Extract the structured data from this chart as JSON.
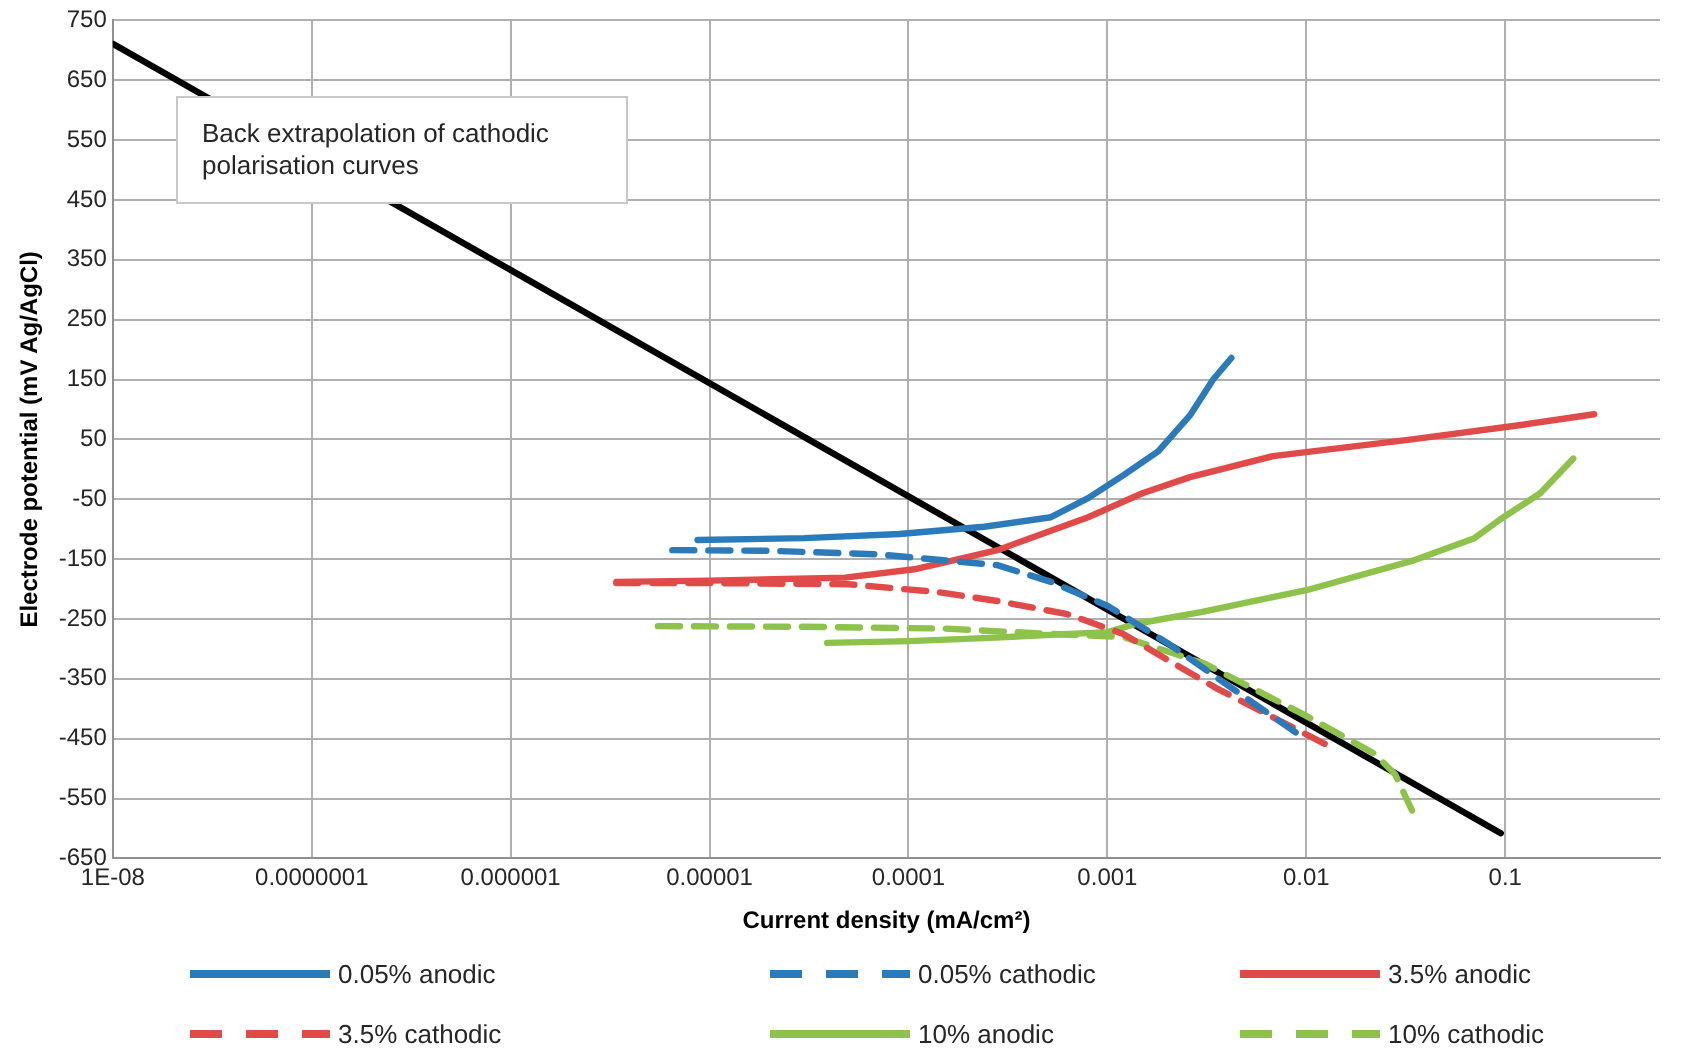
{
  "chart_data": {
    "type": "line",
    "xlabel": "Current density (mA/cm²)",
    "ylabel": "Electrode potential (mV Ag/AgCl)",
    "log": "x",
    "xlim": [
      1e-08,
      0.6
    ],
    "ylim": [
      -650,
      750
    ],
    "xticks": [
      {
        "value": 1e-08,
        "label": "1E-08"
      },
      {
        "value": 1e-07,
        "label": "0.0000001"
      },
      {
        "value": 1e-06,
        "label": "0.000001"
      },
      {
        "value": 1e-05,
        "label": "0.00001"
      },
      {
        "value": 0.0001,
        "label": "0.0001"
      },
      {
        "value": 0.001,
        "label": "0.001"
      },
      {
        "value": 0.01,
        "label": "0.01"
      },
      {
        "value": 0.1,
        "label": "0.1"
      }
    ],
    "yticks": [
      -650,
      -550,
      -450,
      -350,
      -250,
      -150,
      -50,
      50,
      150,
      250,
      350,
      450,
      550,
      650,
      750
    ],
    "grid": true,
    "legend": "bottom",
    "marker": "none",
    "annotations": [
      "Back extrapolation of cathodic polarisation curves"
    ],
    "series": [
      {
        "name": "0.05% anodic",
        "color": "#2b7bba",
        "line_style": "solid",
        "x": [
          8.7e-06,
          3e-05,
          9e-05,
          0.00024,
          0.00052,
          0.0008,
          0.0012,
          0.0018,
          0.0026,
          0.0034,
          0.0042
        ],
        "values": [
          -118,
          -115,
          -108,
          -96,
          -80,
          -48,
          -10,
          30,
          90,
          150,
          186
        ]
      },
      {
        "name": "0.05% cathodic",
        "color": "#2b7bba",
        "line_style": "dashed",
        "x": [
          6.5e-06,
          2e-05,
          7e-05,
          0.00028,
          0.00052,
          0.001,
          0.002,
          0.004,
          0.01
        ],
        "values": [
          -135,
          -136,
          -142,
          -160,
          -188,
          -228,
          -290,
          -360,
          -452
        ]
      },
      {
        "name": "3.5% anodic",
        "color": "#e04b4a",
        "line_style": "solid",
        "x": [
          3.4e-06,
          1e-05,
          4.8e-05,
          0.000107,
          0.00028,
          0.0008,
          0.0015,
          0.0026,
          0.0068,
          0.034,
          0.12,
          0.28
        ],
        "values": [
          -188,
          -186,
          -181,
          -167,
          -135,
          -80,
          -40,
          -13,
          22,
          50,
          74,
          92
        ]
      },
      {
        "name": "3.5% cathodic",
        "color": "#e04b4a",
        "line_style": "dashed",
        "x": [
          3.4e-06,
          1e-05,
          5e-05,
          0.00014,
          0.00028,
          0.00063,
          0.0012,
          0.002,
          0.0035,
          0.006,
          0.0135
        ],
        "values": [
          -190,
          -190,
          -192,
          -205,
          -220,
          -242,
          -275,
          -318,
          -365,
          -405,
          -465
        ]
      },
      {
        "name": "10% anodic",
        "color": "#8dc34a",
        "line_style": "solid",
        "x": [
          3.9e-05,
          0.0001,
          0.00024,
          0.001,
          0.0014,
          0.003,
          0.01,
          0.034,
          0.07,
          0.095,
          0.15,
          0.22
        ],
        "values": [
          -290,
          -287,
          -282,
          -272,
          -258,
          -238,
          -202,
          -153,
          -115,
          -83,
          -40,
          18
        ]
      },
      {
        "name": "10% cathodic",
        "color": "#8dc34a",
        "line_style": "dashed",
        "x": [
          5.5e-06,
          3e-05,
          0.00015,
          0.00052,
          0.0012,
          0.0031,
          0.01,
          0.022,
          0.028,
          0.034
        ],
        "values": [
          -262,
          -263,
          -266,
          -275,
          -280,
          -325,
          -412,
          -475,
          -510,
          -570
        ]
      },
      {
        "color": "#000000",
        "line_style": "solid",
        "x": [
          1e-08,
          0.095
        ],
        "values": [
          711,
          -608
        ]
      }
    ]
  }
}
